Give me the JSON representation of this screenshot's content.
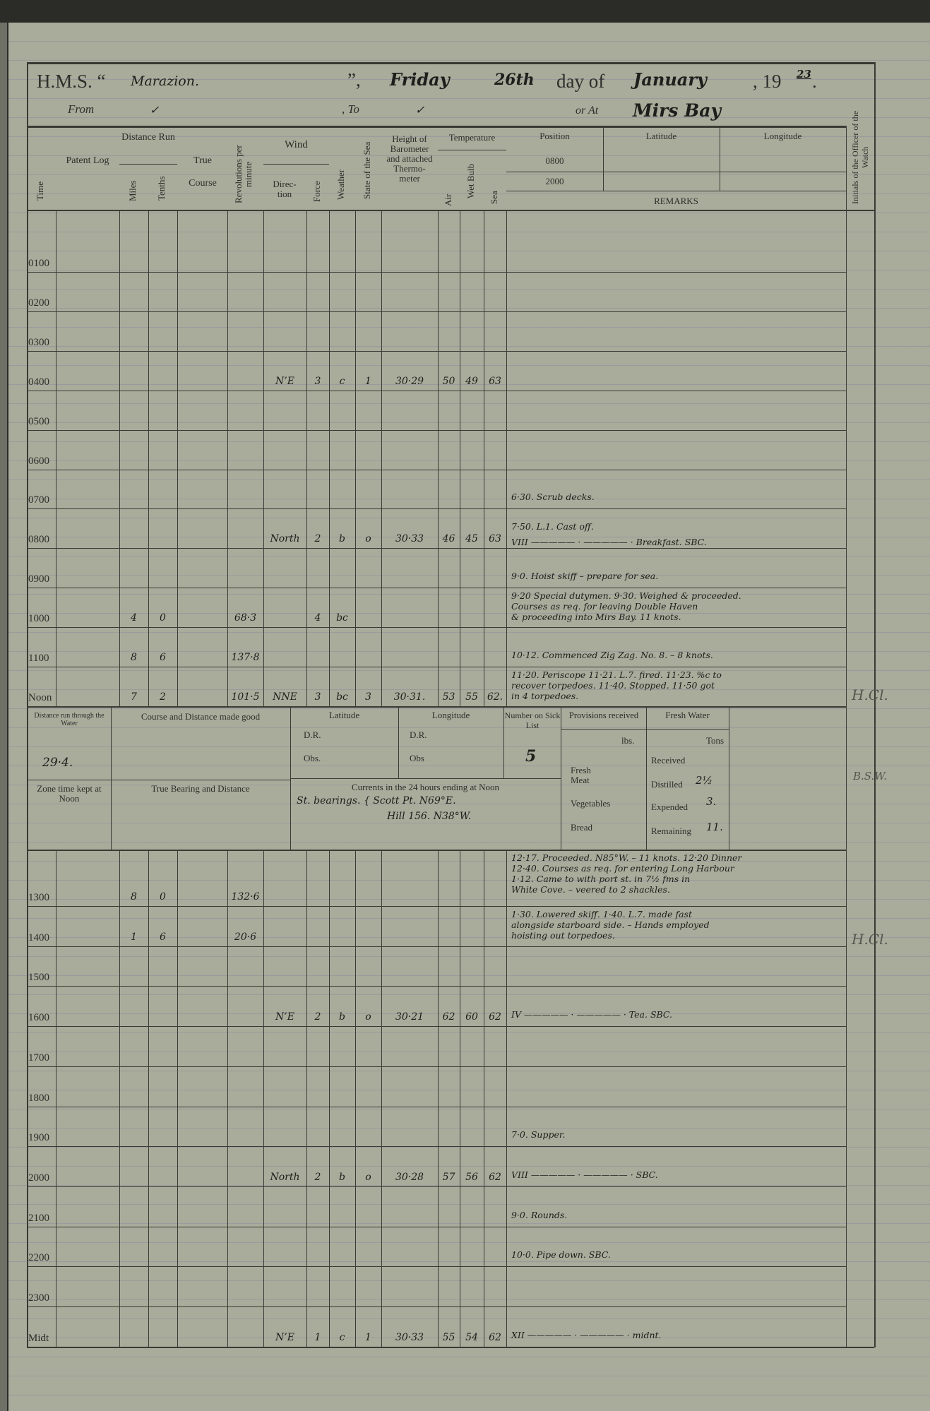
{
  "header": {
    "hms_label": "H.M.S. “",
    "ship_name": "Marazion.",
    "close_quote": "”,",
    "weekday": "Friday",
    "day": "26th",
    "day_of_label": "day of",
    "month": "January",
    "year_prefix": ", 19",
    "year_suffix": "23",
    "from_label": "From",
    "from_value": "✓",
    "to_label": ", To",
    "to_value": "✓",
    "at_label": "or At",
    "at_value": "Mirs Bay"
  },
  "columns": {
    "time": "Time",
    "patent_log": "Patent Log",
    "distance_run": "Distance Run",
    "miles": "Miles",
    "tenths": "Tenths",
    "true_course": "True Course",
    "revolutions": "Revolutions per minute",
    "wind": "Wind",
    "direction": "Direc- tion",
    "force": "Force",
    "weather": "Weather",
    "state_of_sea": "State of the Sea",
    "barometer": "Height of Barometer and attached Thermo- meter",
    "temperature": "Temperature",
    "air": "Air",
    "wet_bulb": "Wet Bulb",
    "sea": "Sea",
    "position": "Position",
    "pos_0800": "0800",
    "pos_2000": "2000",
    "latitude": "Latitude",
    "longitude": "Longitude",
    "remarks": "REMARKS",
    "initials": "Initials of the Officer of the Watch"
  },
  "morning_rows": [
    {
      "time": "0100",
      "remarks": []
    },
    {
      "time": "0200",
      "remarks": []
    },
    {
      "time": "0300",
      "remarks": []
    },
    {
      "time": "0400",
      "dir": "N’E",
      "force": "3",
      "weather": "c",
      "sea_state": "1",
      "barometer": "30·29",
      "air": "50",
      "wet": "49",
      "sea": "63",
      "remarks": []
    },
    {
      "time": "0500",
      "remarks": []
    },
    {
      "time": "0600",
      "remarks": []
    },
    {
      "time": "0700",
      "remarks": [
        "6·30. Scrub decks."
      ]
    },
    {
      "time": "0800",
      "dir": "North",
      "force": "2",
      "weather": "b",
      "sea_state": "o",
      "barometer": "30·33",
      "air": "46",
      "wet": "45",
      "sea": "63",
      "remarks": [
        "7·50. L.1. Cast off.",
        "VIII  ————— · ————— ·  Breakfast. SBC."
      ]
    },
    {
      "time": "0900",
      "remarks": [
        "9·0. Hoist skiff – prepare for sea."
      ]
    },
    {
      "time": "1000",
      "miles": "4",
      "tenths": "0",
      "revs": "68·3",
      "force": "4",
      "weather": "bc",
      "remarks": [
        "9·20 Special dutymen.  9·30. Weighed & proceeded.",
        "Courses as req. for leaving Double Haven",
        "& proceeding into Mirs Bay.  11 knots."
      ]
    },
    {
      "time": "1100",
      "miles": "8",
      "tenths": "6",
      "revs": "137·8",
      "remarks": [
        "10·12. Commenced Zig Zag. No. 8. – 8 knots."
      ]
    },
    {
      "time": "Noon",
      "miles": "7",
      "tenths": "2",
      "revs": "101·5",
      "dir": "NNE",
      "force": "3",
      "weather": "bc",
      "sea_state": "3",
      "barometer": "30·31.",
      "air": "53",
      "wet": "55",
      "sea": "62.",
      "remarks": [
        "11·20. Periscope  11·21. L.7. fired.  11·23. %c to",
        "recover torpedoes.  11·40. Stopped.  11·50 got",
        "in 4 torpedoes."
      ]
    }
  ],
  "noon_block": {
    "distance_label": "Distance run through the Water",
    "distance_value": "29·4.",
    "course_made_good_label": "Course and Distance made good",
    "latitude_label": "Latitude",
    "longitude_label": "Longitude",
    "dr_label": "D.R.",
    "obs_label": "Obs.",
    "obs_label_long": "Obs",
    "sick_list_label": "Number on Sick List",
    "sick_list_value": "5",
    "zone_time_label": "Zone time kept at Noon",
    "true_bearing_label": "True Bearing and Distance",
    "currents_label": "Currents in the 24 hours ending at Noon",
    "currents_lines": [
      "St. bearings. { Scott Pt. N69°E.",
      "Hill 156. N38°W."
    ],
    "provisions_label": "Provisions received",
    "lbs_label": "lbs.",
    "fresh_meat_label": "Fresh Meat",
    "vegetables_label": "Vegetables",
    "bread_label": "Bread",
    "fresh_water_label": "Fresh Water",
    "tons_label": "Tons",
    "received_label": "Received",
    "distilled_label": "Distilled",
    "distilled_value": "2½",
    "expended_label": "Expended",
    "expended_value": "3.",
    "remaining_label": "Remaining",
    "remaining_value": "11."
  },
  "afternoon_rows": [
    {
      "time": "1300",
      "miles": "8",
      "tenths": "0",
      "revs": "132·6",
      "remarks": [
        "12·17. Proceeded. N85°W. – 11 knots.   12·20 Dinner",
        "12·40. Courses as req. for entering Long Harbour",
        "1·12. Came to with port st. in 7½ fms in",
        "White Cove. – veered to 2 shackles."
      ]
    },
    {
      "time": "1400",
      "miles": "1",
      "tenths": "6",
      "revs": "20·6",
      "remarks": [
        "1·30. Lowered skiff.  1·40. L.7. made fast",
        "alongside starboard side. – Hands employed",
        "hoisting out torpedoes."
      ]
    },
    {
      "time": "1500",
      "remarks": []
    },
    {
      "time": "1600",
      "dir": "N’E",
      "force": "2",
      "weather": "b",
      "sea_state": "o",
      "barometer": "30·21",
      "air": "62",
      "wet": "60",
      "sea": "62",
      "remarks": [
        "IV  ————— · ————— ·  Tea. SBC."
      ]
    },
    {
      "time": "1700",
      "remarks": []
    },
    {
      "time": "1800",
      "remarks": []
    },
    {
      "time": "1900",
      "remarks": [
        "7·0. Supper."
      ]
    },
    {
      "time": "2000",
      "dir": "North",
      "force": "2",
      "weather": "b",
      "sea_state": "o",
      "barometer": "30·28",
      "air": "57",
      "wet": "56",
      "sea": "62",
      "remarks": [
        "VIII  ————— · ————— ·        SBC."
      ]
    },
    {
      "time": "2100",
      "remarks": [
        "9·0. Rounds."
      ]
    },
    {
      "time": "2200",
      "remarks": [
        "10·0. Pipe down.                           SBC."
      ]
    },
    {
      "time": "2300",
      "remarks": []
    },
    {
      "time": "Midt",
      "dir": "N’E",
      "force": "1",
      "weather": "c",
      "sea_state": "1",
      "barometer": "30·33",
      "air": "55",
      "wet": "54",
      "sea": "62",
      "remarks": [
        "XII  ————— · ————— ·       midnt."
      ]
    }
  ],
  "initials": [
    "H.Cl.",
    "B.S.W.",
    "H.Cl."
  ]
}
